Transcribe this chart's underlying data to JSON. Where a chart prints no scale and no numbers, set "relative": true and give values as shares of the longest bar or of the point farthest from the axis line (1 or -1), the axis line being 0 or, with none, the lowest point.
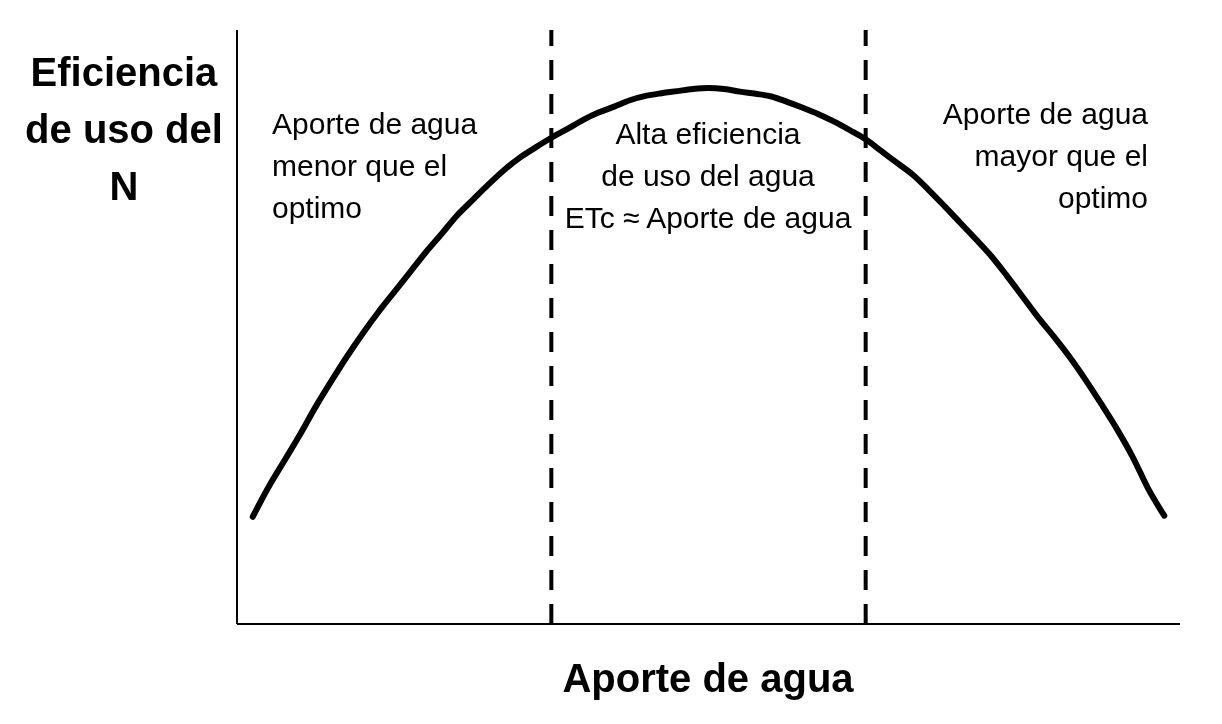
{
  "chart_data": {
    "type": "line",
    "relative": true,
    "ylabel": "Eficiencia\nde uso del\nN",
    "xlabel": "Aporte de agua",
    "annotations": [
      "Aporte de agua\nmenor que el\noptimo",
      "Alta eficiencia\nde uso del agua\nETc ≈ Aporte de agua",
      "Aporte de agua\nmayor que el\noptimo"
    ],
    "categories": [
      null,
      null,
      null,
      null,
      null,
      null,
      null,
      null,
      null,
      null,
      null,
      null,
      null,
      null,
      null,
      null,
      null,
      null,
      null,
      null,
      null,
      null,
      null,
      null,
      null,
      null,
      null,
      null,
      null,
      null,
      null,
      null,
      null,
      null,
      null,
      null,
      null,
      null,
      null,
      null,
      null,
      null,
      null,
      null,
      null,
      null,
      null,
      null,
      null,
      null,
      null,
      null,
      null,
      null,
      null,
      null,
      null,
      null,
      null,
      null,
      null
    ],
    "series": [
      {
        "color": "#000000",
        "values": [
          null,
          0.2,
          0.255,
          0.304,
          0.353,
          0.405,
          0.453,
          0.499,
          0.542,
          0.582,
          0.619,
          0.656,
          0.693,
          0.727,
          0.762,
          0.791,
          0.82,
          0.847,
          0.87,
          0.889,
          0.907,
          0.923,
          0.94,
          0.954,
          0.965,
          0.977,
          0.985,
          0.99,
          0.994,
          0.998,
          1.0,
          0.998,
          0.993,
          0.989,
          0.984,
          0.974,
          0.963,
          0.951,
          0.937,
          0.921,
          0.904,
          0.882,
          0.86,
          0.838,
          0.81,
          0.78,
          0.749,
          0.718,
          0.686,
          0.649,
          0.61,
          0.571,
          0.535,
          0.497,
          0.455,
          0.41,
          0.363,
          0.311,
          0.251,
          0.202,
          null
        ]
      }
    ],
    "marker": "none",
    "line_style": "solid"
  }
}
